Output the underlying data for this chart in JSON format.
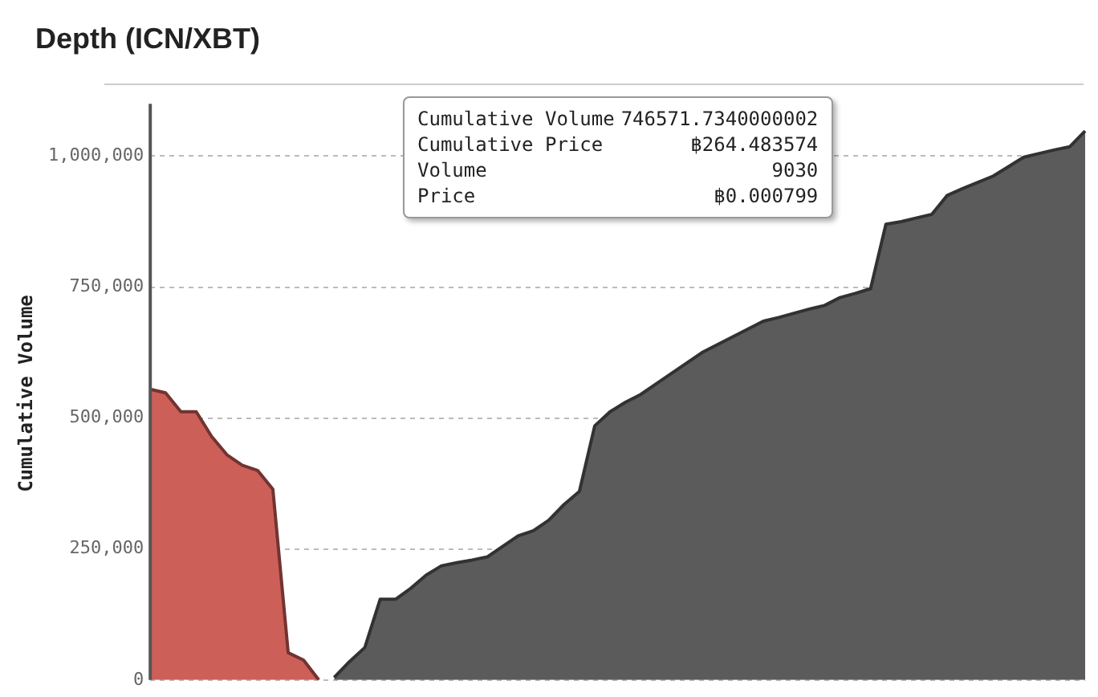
{
  "chart_data": {
    "type": "area",
    "title": "Depth (ICN/XBT)",
    "ylabel": "Cumulative Volume",
    "categories": [
      null,
      null,
      null,
      null,
      null,
      null,
      null,
      null,
      null,
      null,
      null,
      null,
      null,
      null,
      null,
      null,
      null,
      null,
      null,
      null,
      null,
      null,
      null,
      null,
      null,
      null,
      null,
      null,
      null,
      null,
      null,
      null,
      null,
      null,
      null,
      null,
      null,
      null,
      null,
      null,
      null,
      null,
      null,
      null,
      null,
      null,
      null,
      null,
      null,
      null,
      null,
      null,
      null,
      null,
      null,
      null,
      null,
      null,
      null,
      null,
      null,
      null
    ],
    "series": [
      {
        "color": "#cd5f59",
        "values": [
          555000,
          548000,
          512000,
          512000,
          465000,
          430000,
          410000,
          400000,
          364000,
          52000,
          38000,
          0,
          null,
          null,
          null,
          null,
          null,
          null,
          null,
          null,
          null,
          null,
          null,
          null,
          null,
          null,
          null,
          null,
          null,
          null,
          null,
          null,
          null,
          null,
          null,
          null,
          null,
          null,
          null,
          null,
          null,
          null,
          null,
          null,
          null,
          null,
          null,
          null,
          null,
          null,
          null,
          null,
          null,
          null,
          null,
          null,
          null,
          null,
          null,
          null,
          null,
          null
        ]
      },
      {
        "color": "#5b5b5b",
        "values": [
          null,
          null,
          null,
          null,
          null,
          null,
          null,
          null,
          null,
          null,
          null,
          null,
          5000,
          35000,
          62000,
          154000,
          154000,
          175000,
          200000,
          218000,
          224000,
          229000,
          235000,
          255000,
          275000,
          285000,
          305000,
          335000,
          360000,
          485000,
          512000,
          530000,
          545000,
          565000,
          585000,
          605000,
          625000,
          640000,
          655000,
          670000,
          685000,
          692000,
          700000,
          708000,
          715000,
          730000,
          738000,
          747000,
          870000,
          875000,
          882000,
          889000,
          925000,
          938000,
          950000,
          962000,
          980000,
          998000,
          1005000,
          1012000,
          1018000,
          1048000
        ]
      }
    ],
    "ylim": [
      0,
      1100000
    ],
    "yticks": [
      {
        "value": 0,
        "label": "0"
      },
      {
        "value": 250000,
        "label": "250,000"
      },
      {
        "value": 500000,
        "label": "500,000"
      },
      {
        "value": 750000,
        "label": "750,000"
      },
      {
        "value": 1000000,
        "label": "1,000,000"
      }
    ],
    "grid": "y",
    "legend": false,
    "tick_labels": "y",
    "marker": "none",
    "line_style": "solid",
    "annotations": [
      "Cumulative Volume",
      "746571.7340000002",
      "Cumulative Price",
      "฿264.483574",
      "Volume",
      "9030",
      "Price",
      "฿0.000799"
    ]
  }
}
